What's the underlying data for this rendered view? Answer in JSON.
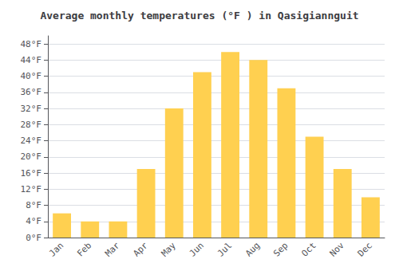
{
  "chart_data": {
    "type": "bar",
    "title": "Average monthly temperatures (°F ) in Qasigiannguit",
    "categories": [
      "Jan",
      "Feb",
      "Mar",
      "Apr",
      "May",
      "Jun",
      "Jul",
      "Aug",
      "Sep",
      "Oct",
      "Nov",
      "Dec"
    ],
    "values": [
      6,
      4,
      4,
      17,
      32,
      41,
      46,
      44,
      37,
      25,
      17,
      10
    ],
    "color": "#FFD050",
    "ylim": [
      0,
      50
    ],
    "yticks": [
      {
        "value": 0,
        "label": "0°F"
      },
      {
        "value": 4,
        "label": "4°F"
      },
      {
        "value": 8,
        "label": "8°F"
      },
      {
        "value": 12,
        "label": "12°F"
      },
      {
        "value": 16,
        "label": "16°F"
      },
      {
        "value": 20,
        "label": "20°F"
      },
      {
        "value": 24,
        "label": "24°F"
      },
      {
        "value": 28,
        "label": "28°F"
      },
      {
        "value": 32,
        "label": "32°F"
      },
      {
        "value": 36,
        "label": "36°F"
      },
      {
        "value": 40,
        "label": "40°F"
      },
      {
        "value": 44,
        "label": "44°F"
      },
      {
        "value": 48,
        "label": "48°F"
      }
    ],
    "grid": true
  }
}
